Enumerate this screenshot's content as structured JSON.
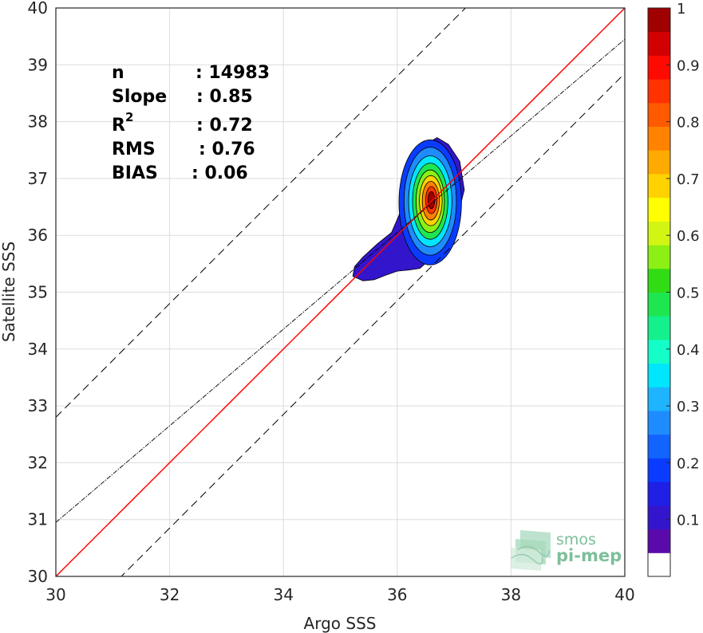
{
  "chart_data": {
    "type": "scatter-density",
    "xlabel": "Argo SSS",
    "ylabel": "Satellite SSS",
    "xlim": [
      30,
      40
    ],
    "ylim": [
      30,
      40
    ],
    "xticks": [
      30,
      32,
      34,
      36,
      38,
      40
    ],
    "yticks": [
      30,
      31,
      32,
      33,
      34,
      35,
      36,
      37,
      38,
      39,
      40
    ],
    "grid": true,
    "stats": {
      "n_label": "n",
      "n_value": ": 14983",
      "slope_label": "Slope",
      "slope_value": ": 0.85",
      "r2_label": "R",
      "r2_sup": "2",
      "r2_value": ": 0.72",
      "rms_label": "RMS",
      "rms_value": ": 0.76",
      "bias_label": "BIAS",
      "bias_value": ": 0.06"
    },
    "lines": {
      "identity": {
        "slope": 1,
        "intercept": 0,
        "color": "#ff0000",
        "style": "solid"
      },
      "regression": {
        "slope": 0.85,
        "intercept_at_30": 30.95,
        "color": "#000000",
        "style": "dash-dot"
      },
      "upper_bound": {
        "offset": 2.8,
        "color": "#000000",
        "style": "dashed"
      },
      "lower_bound": {
        "offset": -1.15,
        "color": "#000000",
        "style": "dashed"
      }
    },
    "density": {
      "peak": [
        36.6,
        36.6
      ],
      "levels": [
        {
          "level": 0.05,
          "outline": [
            [
              35.22,
              35.28
            ],
            [
              35.4,
              35.2
            ],
            [
              35.6,
              35.22
            ],
            [
              35.8,
              35.3
            ],
            [
              36.0,
              35.37
            ],
            [
              36.2,
              35.39
            ],
            [
              36.4,
              35.42
            ],
            [
              36.6,
              35.6
            ],
            [
              36.85,
              35.9
            ],
            [
              37.05,
              36.3
            ],
            [
              37.18,
              36.8
            ],
            [
              37.1,
              37.3
            ],
            [
              36.9,
              37.6
            ],
            [
              36.7,
              37.72
            ],
            [
              36.5,
              37.6
            ],
            [
              36.35,
              37.3
            ],
            [
              36.2,
              36.9
            ],
            [
              36.05,
              36.4
            ],
            [
              35.9,
              36.05
            ],
            [
              35.65,
              35.85
            ],
            [
              35.4,
              35.62
            ],
            [
              35.25,
              35.45
            ]
          ]
        }
      ],
      "rings": [
        {
          "level": 0.1,
          "cx": 36.58,
          "cy": 36.58,
          "rx": 0.55,
          "ry": 1.1
        },
        {
          "level": 0.2,
          "cx": 36.58,
          "cy": 36.6,
          "rx": 0.46,
          "ry": 0.95
        },
        {
          "level": 0.3,
          "cx": 36.58,
          "cy": 36.6,
          "rx": 0.38,
          "ry": 0.8
        },
        {
          "level": 0.4,
          "cx": 36.58,
          "cy": 36.6,
          "rx": 0.31,
          "ry": 0.67
        },
        {
          "level": 0.5,
          "cx": 36.58,
          "cy": 36.6,
          "rx": 0.25,
          "ry": 0.55
        },
        {
          "level": 0.6,
          "cx": 36.59,
          "cy": 36.61,
          "rx": 0.2,
          "ry": 0.44
        },
        {
          "level": 0.7,
          "cx": 36.59,
          "cy": 36.61,
          "rx": 0.15,
          "ry": 0.34
        },
        {
          "level": 0.8,
          "cx": 36.6,
          "cy": 36.62,
          "rx": 0.1,
          "ry": 0.24
        },
        {
          "level": 0.9,
          "cx": 36.6,
          "cy": 36.62,
          "rx": 0.06,
          "ry": 0.15
        }
      ]
    },
    "colorbar": {
      "ticks": [
        "0.1",
        "0.2",
        "0.3",
        "0.4",
        "0.5",
        "0.6",
        "0.7",
        "0.8",
        "0.9",
        "1"
      ],
      "tick_values": [
        0.1,
        0.2,
        0.3,
        0.4,
        0.5,
        0.6,
        0.7,
        0.8,
        0.9,
        1.0
      ],
      "colors": [
        "#ffffff",
        "#5a0aaa",
        "#3316cc",
        "#1f1fe6",
        "#0a3cff",
        "#1264ff",
        "#1e8cff",
        "#1eb4ff",
        "#00e6ff",
        "#14ffc8",
        "#14f08c",
        "#1ee650",
        "#32dc14",
        "#8cf014",
        "#d2f514",
        "#ffff00",
        "#ffd200",
        "#ffaa00",
        "#ff8200",
        "#ff5a00",
        "#ff3200",
        "#ff0a00",
        "#d20000",
        "#a00000"
      ]
    }
  },
  "logo": {
    "line1": "smos",
    "line2": "pi-mep"
  }
}
